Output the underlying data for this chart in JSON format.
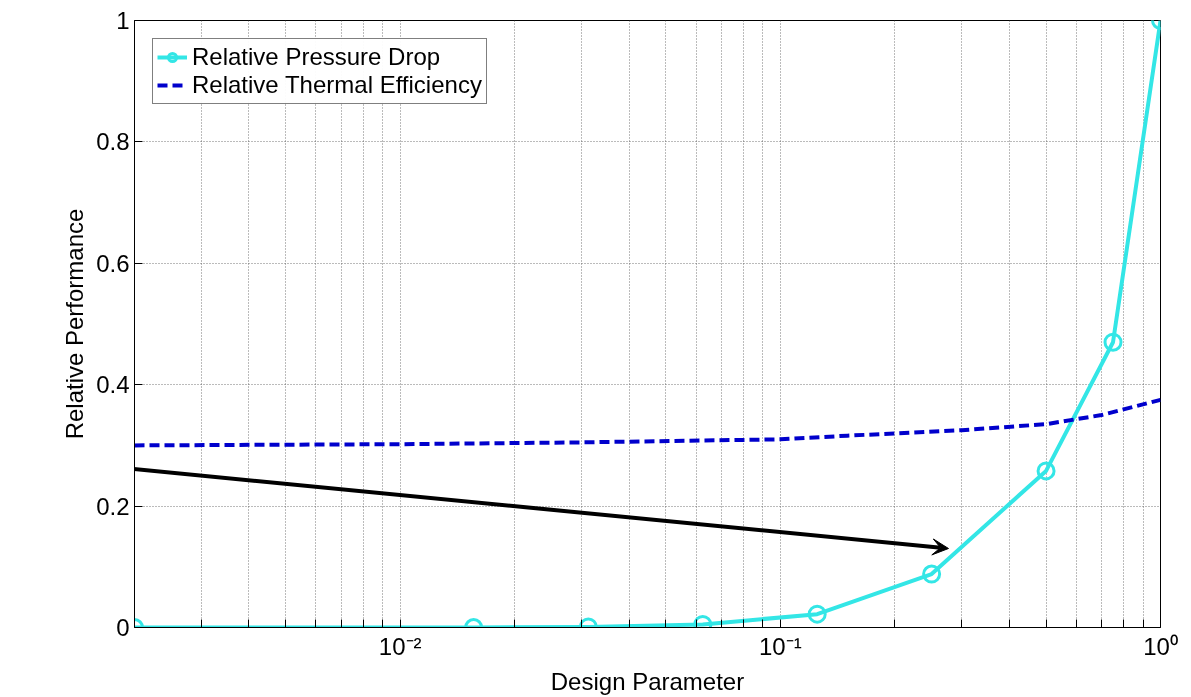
{
  "chart_data": {
    "type": "line",
    "xlabel": "Design Parameter",
    "ylabel": "Relative Performance",
    "log": "x",
    "xlim": [
      0.002,
      1
    ],
    "ylim": [
      0,
      1
    ],
    "xticks": [
      {
        "value": 0.003,
        "label": null
      },
      {
        "value": 0.004,
        "label": null
      },
      {
        "value": 0.005,
        "label": null
      },
      {
        "value": 0.006,
        "label": null
      },
      {
        "value": 0.007,
        "label": null
      },
      {
        "value": 0.008,
        "label": null
      },
      {
        "value": 0.009,
        "label": null
      },
      {
        "value": 0.01,
        "label": "10⁻²"
      },
      {
        "value": 0.02,
        "label": null
      },
      {
        "value": 0.03,
        "label": null
      },
      {
        "value": 0.04,
        "label": null
      },
      {
        "value": 0.05,
        "label": null
      },
      {
        "value": 0.06,
        "label": null
      },
      {
        "value": 0.07,
        "label": null
      },
      {
        "value": 0.08,
        "label": null
      },
      {
        "value": 0.09,
        "label": null
      },
      {
        "value": 0.1,
        "label": "10⁻¹"
      },
      {
        "value": 0.2,
        "label": null
      },
      {
        "value": 0.3,
        "label": null
      },
      {
        "value": 0.4,
        "label": null
      },
      {
        "value": 0.5,
        "label": null
      },
      {
        "value": 0.6,
        "label": null
      },
      {
        "value": 0.7,
        "label": null
      },
      {
        "value": 0.8,
        "label": null
      },
      {
        "value": 0.9,
        "label": null
      },
      {
        "value": 1,
        "label": "10⁰"
      }
    ],
    "yticks": [
      0,
      0.2,
      0.4,
      0.6,
      0.8,
      1
    ],
    "grid": true,
    "legend": "top left",
    "series": [
      {
        "name": "Relative Pressure Drop",
        "color": "#33e6e6",
        "marker": "circle",
        "line_style": "solid",
        "x": [
          0.002,
          0.0156,
          0.03125,
          0.0625,
          0.125,
          0.25,
          0.5,
          0.75,
          1
        ],
        "values": [
          0,
          0,
          0.001,
          0.005,
          0.022,
          0.088,
          0.258,
          0.47,
          1
        ]
      },
      {
        "name": "Relative Thermal Efficiency",
        "color": "#0000cc",
        "marker": "none",
        "line_style": "dashed",
        "x": [
          0.002,
          0.01,
          0.03,
          0.1,
          0.15,
          0.3,
          0.5,
          0.7,
          1
        ],
        "values": [
          0.3,
          0.302,
          0.305,
          0.31,
          0.316,
          0.325,
          0.335,
          0.35,
          0.375
        ]
      }
    ]
  }
}
